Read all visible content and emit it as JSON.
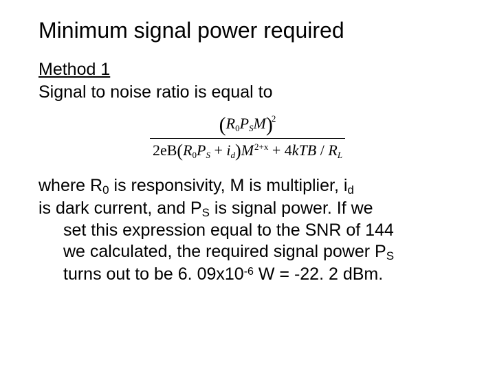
{
  "title": "Minimum signal power required",
  "method_label": "Method 1",
  "intro_line": "Signal to noise ratio is equal to",
  "formula": {
    "num": {
      "R": "R",
      "Rsub": "0",
      "P": "P",
      "Psub": "S",
      "M": "M",
      "exp": "2"
    },
    "den": {
      "two_e_B": "2eB",
      "R": "R",
      "Rsub": "0",
      "P": "P",
      "Psub": "S",
      "plus": " + ",
      "i": "i",
      "isub": "d",
      "M": "M",
      "exp": "2+x",
      "plus2": " + 4",
      "k": "k",
      "T": "T",
      "B": "B",
      "slash": " / ",
      "RL": "R",
      "RLsub": "L"
    }
  },
  "body": {
    "p1a": "where R",
    "p1a_sub": "0",
    "p1b": " is responsivity, M is multiplier, i",
    "p1b_sub": "d",
    "p2a": "is dark current, and P",
    "p2a_sub": "S",
    "p2b": " is signal power.  If we",
    "p3": "set this expression equal to the SNR of 144",
    "p4a": "we calculated, the required signal power P",
    "p4a_sub": "S",
    "p5a": "turns out to be 6. 09x10",
    "p5a_sup": "-6",
    "p5b": " W = -22. 2 dBm."
  },
  "colors": {
    "background": "#ffffff",
    "text": "#000000"
  },
  "fontsize": {
    "title": 32,
    "body": 25,
    "formula": 22
  }
}
